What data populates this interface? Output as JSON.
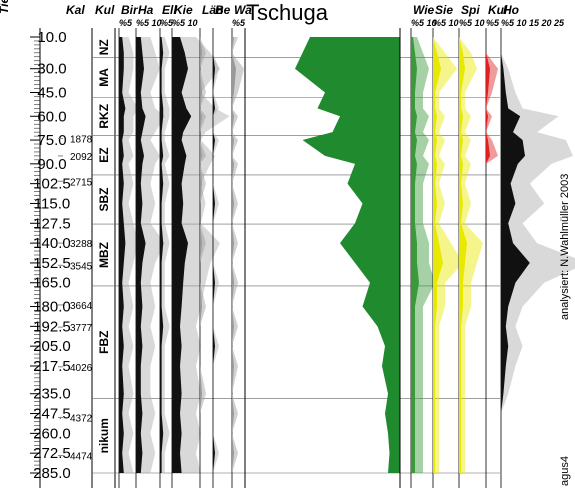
{
  "chart_data": {
    "type": "pollen",
    "title": "Tschuga",
    "credit": "analysiert: N.Wahlmüller 2003",
    "site_code": "agus4",
    "column_headers": [
      "Tie",
      "Kal",
      "Kul"
    ],
    "ylim": [
      10,
      285
    ],
    "yticks": [
      {
        "value": 10,
        "label": "10.0"
      },
      {
        "value": 30,
        "label": "30.0"
      },
      {
        "value": 45,
        "label": "45.0"
      },
      {
        "value": 60,
        "label": "60.0"
      },
      {
        "value": 75,
        "label": "75.0"
      },
      {
        "value": 90,
        "label": "90.0"
      },
      {
        "value": 102.5,
        "label": "102.5"
      },
      {
        "value": 115,
        "label": "115.0"
      },
      {
        "value": 127.5,
        "label": "127.5"
      },
      {
        "value": 140,
        "label": "140.0"
      },
      {
        "value": 152.5,
        "label": "152.5"
      },
      {
        "value": 165,
        "label": "165.0"
      },
      {
        "value": 180,
        "label": "180.0"
      },
      {
        "value": 192.5,
        "label": "192.5"
      },
      {
        "value": 205,
        "label": "205.0"
      },
      {
        "value": 217.5,
        "label": "217.5"
      },
      {
        "value": 235,
        "label": "235.0"
      },
      {
        "value": 247.5,
        "label": "247.5"
      },
      {
        "value": 260,
        "label": "260.0"
      },
      {
        "value": 272.5,
        "label": "272.5"
      },
      {
        "value": 285,
        "label": "285.0"
      }
    ],
    "ages": [
      {
        "depth": 74,
        "label": "1878"
      },
      {
        "depth": 85,
        "label": "2092"
      },
      {
        "depth": 101,
        "label": "2715"
      },
      {
        "depth": 140,
        "label": "3288"
      },
      {
        "depth": 154,
        "label": "3545"
      },
      {
        "depth": 179,
        "label": "3664"
      },
      {
        "depth": 193,
        "label": "3777"
      },
      {
        "depth": 218,
        "label": "4026"
      },
      {
        "depth": 250,
        "label": "4372"
      },
      {
        "depth": 274,
        "label": "4474"
      }
    ],
    "zones": [
      {
        "label": "NZ",
        "from": 10,
        "to": 23
      },
      {
        "label": "MA",
        "from": 23,
        "to": 48
      },
      {
        "label": "RKZ",
        "from": 48,
        "to": 72
      },
      {
        "label": "EZ",
        "from": 72,
        "to": 97
      },
      {
        "label": "SBZ",
        "from": 97,
        "to": 128
      },
      {
        "label": "MBZ",
        "from": 128,
        "to": 167
      },
      {
        "label": "FBZ",
        "from": 167,
        "to": 238
      },
      {
        "label": "nikum",
        "from": 238,
        "to": 285
      }
    ],
    "depths": [
      10,
      20,
      30,
      45,
      55,
      60,
      70,
      75,
      85,
      90,
      102.5,
      115,
      127.5,
      140,
      152.5,
      165,
      180,
      192.5,
      205,
      217.5,
      235,
      247.5,
      260,
      272.5,
      285
    ],
    "series": [
      {
        "name": "Bir",
        "scale": "%5",
        "color": "#111111",
        "values": [
          2,
          3,
          3,
          2,
          4,
          3,
          3,
          2,
          3,
          2,
          3,
          2,
          3,
          4,
          3,
          2,
          3,
          2,
          3,
          2,
          3,
          2,
          3,
          2,
          3
        ]
      },
      {
        "name": "Ha",
        "scale": "%5 10",
        "color": "#111111",
        "values": [
          3,
          4,
          5,
          3,
          4,
          6,
          4,
          3,
          5,
          4,
          3,
          4,
          3,
          6,
          4,
          3,
          4,
          3,
          4,
          3,
          3,
          4,
          3,
          4,
          3
        ]
      },
      {
        "name": "Ell",
        "scale": "%5",
        "color": "#111111",
        "values": [
          1,
          2,
          1,
          1,
          2,
          2,
          1,
          1,
          2,
          1,
          2,
          1,
          1,
          2,
          1,
          1,
          1,
          2,
          1,
          1,
          1,
          1,
          2,
          1,
          1
        ]
      },
      {
        "name": "Kie",
        "scale": "%5 10",
        "color": "#111111",
        "values": [
          5,
          8,
          10,
          6,
          9,
          12,
          7,
          6,
          9,
          8,
          6,
          7,
          6,
          10,
          8,
          7,
          6,
          5,
          6,
          5,
          6,
          5,
          6,
          5,
          6
        ]
      },
      {
        "name": "Län",
        "scale": "",
        "color": "#999999",
        "values": [
          0,
          1,
          0,
          1,
          0,
          1,
          0,
          0,
          1,
          0,
          1,
          0,
          0,
          1,
          0,
          0,
          1,
          0,
          0,
          0,
          1,
          0,
          0,
          0,
          0
        ]
      },
      {
        "name": "Be",
        "scale": "",
        "color": "#111111",
        "values": [
          0,
          0,
          1,
          0,
          1,
          0,
          0,
          1,
          0,
          0,
          0,
          1,
          0,
          0,
          0,
          1,
          0,
          0,
          1,
          0,
          0,
          0,
          0,
          1,
          0
        ]
      },
      {
        "name": "Wa",
        "scale": "%5",
        "color": "#999999",
        "values": [
          1,
          0,
          2,
          1,
          0,
          1,
          0,
          1,
          0,
          1,
          0,
          1,
          0,
          1,
          0,
          1,
          0,
          1,
          0,
          1,
          0,
          1,
          0,
          1,
          0
        ]
      },
      {
        "name": "Wie",
        "scale": "%5 10",
        "color": "#3a9a3a",
        "values": [
          1,
          2,
          3,
          2,
          2,
          3,
          2,
          3,
          2,
          3,
          2,
          2,
          2,
          3,
          3,
          4,
          2,
          2,
          2,
          2,
          2,
          2,
          2,
          2,
          2
        ]
      },
      {
        "name": "Sie",
        "scale": "%5 10",
        "color": "#e8e800",
        "values": [
          0,
          2,
          4,
          1,
          1,
          2,
          1,
          2,
          1,
          2,
          1,
          2,
          1,
          3,
          5,
          2,
          2,
          1,
          1,
          1,
          1,
          1,
          1,
          1,
          1
        ]
      },
      {
        "name": "Spi",
        "scale": "%5 10",
        "color": "#e8e800",
        "values": [
          0,
          2,
          3,
          1,
          1,
          2,
          1,
          2,
          1,
          2,
          1,
          2,
          1,
          4,
          3,
          2,
          2,
          1,
          1,
          1,
          1,
          1,
          1,
          1,
          1
        ]
      },
      {
        "name": "Kul",
        "scale": "%5",
        "color": "#dd2222",
        "values": [
          0,
          0,
          2,
          1,
          0,
          1,
          0,
          1,
          2,
          0,
          0,
          0,
          0,
          0,
          0,
          0,
          0,
          0,
          0,
          0,
          0,
          0,
          0,
          0,
          0
        ]
      },
      {
        "name": "Ho",
        "scale": "%5 10 15 20 25",
        "color": "#111111",
        "values": [
          0,
          0,
          1,
          2,
          3,
          8,
          5,
          9,
          10,
          7,
          4,
          6,
          3,
          5,
          12,
          6,
          3,
          2,
          3,
          2,
          1,
          0,
          0,
          0,
          0
        ]
      }
    ],
    "nap": {
      "color": "#1f8a2e",
      "values": [
        40,
        35,
        30,
        50,
        45,
        60,
        55,
        35,
        50,
        70,
        65,
        75,
        70,
        60,
        70,
        80,
        75,
        85,
        90,
        88,
        92,
        90,
        92,
        93,
        92
      ]
    }
  }
}
